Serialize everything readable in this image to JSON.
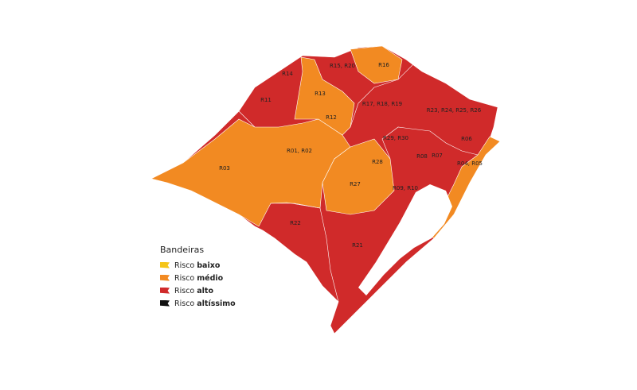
{
  "colors": {
    "baixo": "#f5c518",
    "medio": "#f28a22",
    "alto": "#d02a2a",
    "altissimo": "#111111"
  },
  "regions": [
    {
      "label": "R03",
      "level": "medio"
    },
    {
      "label": "R01, R02",
      "level": "medio"
    },
    {
      "label": "R11",
      "level": "alto"
    },
    {
      "label": "R14",
      "level": "alto"
    },
    {
      "label": "R13",
      "level": "medio"
    },
    {
      "label": "R12",
      "level": "medio"
    },
    {
      "label": "R15, R20",
      "level": "alto"
    },
    {
      "label": "R16",
      "level": "medio"
    },
    {
      "label": "R17, R18, R19",
      "level": "alto"
    },
    {
      "label": "R23, R24, R25, R26",
      "level": "alto"
    },
    {
      "label": "R29, R30",
      "level": "alto"
    },
    {
      "label": "R06",
      "level": "alto"
    },
    {
      "label": "R08",
      "level": "alto"
    },
    {
      "label": "R07",
      "level": "alto"
    },
    {
      "label": "R04, R05",
      "level": "medio"
    },
    {
      "label": "R28",
      "level": "medio"
    },
    {
      "label": "R27",
      "level": "medio"
    },
    {
      "label": "R09, R10",
      "level": "alto"
    },
    {
      "label": "R22",
      "level": "alto"
    },
    {
      "label": "R21",
      "level": "alto"
    }
  ],
  "legend": {
    "title": "Bandeiras",
    "items": [
      {
        "prefix": "Risco",
        "bold": "baixo",
        "level": "baixo"
      },
      {
        "prefix": "Risco",
        "bold": "médio",
        "level": "medio"
      },
      {
        "prefix": "Risco",
        "bold": "alto",
        "level": "alto"
      },
      {
        "prefix": "Risco",
        "bold": "altíssimo",
        "level": "altissimo"
      }
    ]
  }
}
